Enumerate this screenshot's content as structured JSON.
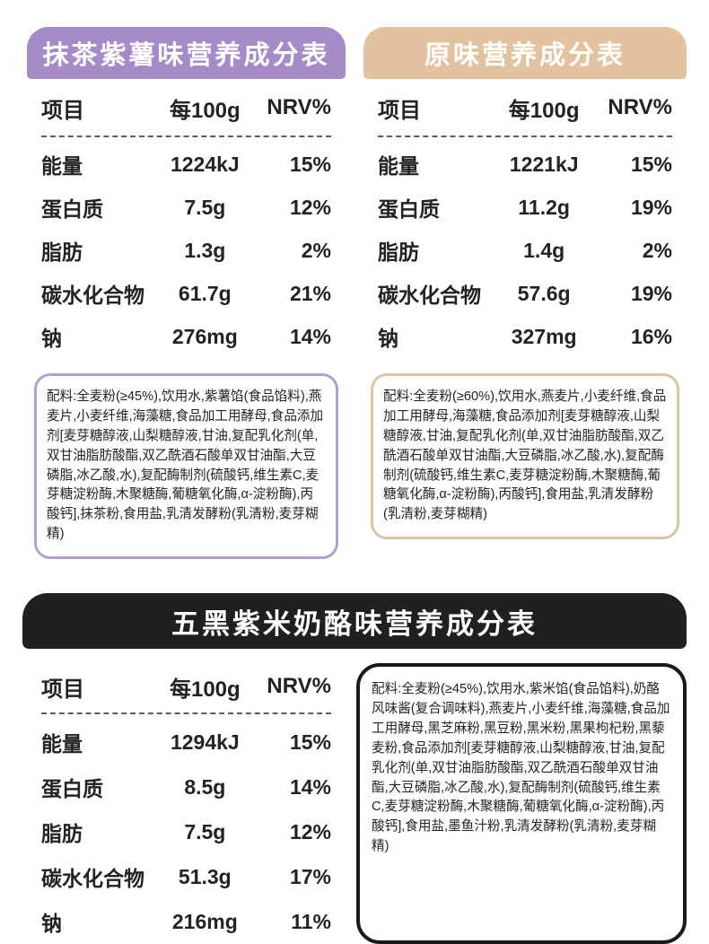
{
  "colors": {
    "matcha_header": "#a58bc7",
    "matcha_border": "#b2a0d4",
    "original_header": "#e3c39f",
    "original_border": "#dcc3a2",
    "wuhei_header": "#202022",
    "wuhei_border": "#1a1a1a",
    "text": "#232323",
    "background": "#ffffff"
  },
  "table_columns": [
    "项目",
    "每100g",
    "NRV%"
  ],
  "ingredients_prefix": "配料:",
  "panels": [
    {
      "id": "matcha-purple-potato",
      "title": "抹茶紫薯味营养成分表",
      "table": {
        "rows": [
          {
            "label": "能量",
            "value": "1224kJ",
            "nrv": "15%"
          },
          {
            "label": "蛋白质",
            "value": "7.5g",
            "nrv": "12%"
          },
          {
            "label": "脂肪",
            "value": "1.3g",
            "nrv": "2%"
          },
          {
            "label": "碳水化合物",
            "value": "61.7g",
            "nrv": "21%"
          },
          {
            "label": "钠",
            "value": "276mg",
            "nrv": "14%"
          }
        ]
      },
      "ingredients": "配料:全麦粉(≥45%),饮用水,紫薯馅(食品馅料),燕麦片,小麦纤维,海藻糖,食品加工用酵母,食品添加剂[麦芽糖醇液,山梨糖醇液,甘油,复配乳化剂(单,双甘油脂肪酸酯,双乙酰酒石酸单双甘油酯,大豆磷脂,冰乙酸,水),复配酶制剂(硫酸钙,维生素C,麦芽糖淀粉酶,木聚糖酶,葡糖氧化酶,α-淀粉酶),丙酸钙],抹茶粉,食用盐,乳清发酵粉(乳清粉,麦芽糊精)"
    },
    {
      "id": "original",
      "title": "原味营养成分表",
      "table": {
        "rows": [
          {
            "label": "能量",
            "value": "1221kJ",
            "nrv": "15%"
          },
          {
            "label": "蛋白质",
            "value": "11.2g",
            "nrv": "19%"
          },
          {
            "label": "脂肪",
            "value": "1.4g",
            "nrv": "2%"
          },
          {
            "label": "碳水化合物",
            "value": "57.6g",
            "nrv": "19%"
          },
          {
            "label": "钠",
            "value": "327mg",
            "nrv": "16%"
          }
        ]
      },
      "ingredients": "配料:全麦粉(≥60%),饮用水,燕麦片,小麦纤维,食品加工用酵母,海藻糖,食品添加剂[麦芽糖醇液,山梨糖醇液,甘油,复配乳化剂(单,双甘油脂肪酸酯,双乙酰酒石酸单双甘油酯,大豆磷脂,冰乙酸,水),复配酶制剂(硫酸钙,维生素C,麦芽糖淀粉酶,木聚糖酶,葡糖氧化酶,α-淀粉酶),丙酸钙],食用盐,乳清发酵粉(乳清粉,麦芽糊精)"
    },
    {
      "id": "five-black-purple-rice-cheese",
      "title": "五黑紫米奶酪味营养成分表",
      "table": {
        "rows": [
          {
            "label": "能量",
            "value": "1294kJ",
            "nrv": "15%"
          },
          {
            "label": "蛋白质",
            "value": "8.5g",
            "nrv": "14%"
          },
          {
            "label": "脂肪",
            "value": "7.5g",
            "nrv": "12%"
          },
          {
            "label": "碳水化合物",
            "value": "51.3g",
            "nrv": "17%"
          },
          {
            "label": "钠",
            "value": "216mg",
            "nrv": "11%"
          }
        ]
      },
      "ingredients": "配料:全麦粉(≥45%),饮用水,紫米馅(食品馅料),奶酪风味酱(复合调味料),燕麦片,小麦纤维,海藻糖,食品加工用酵母,黑芝麻粉,黑豆粉,黑米粉,黑果枸杞粉,黑藜麦粉,食品添加剂[麦芽糖醇液,山梨糖醇液,甘油,复配乳化剂(单,双甘油脂肪酸酯,双乙酰酒石酸单双甘油酯,大豆磷脂,冰乙酸,水),复配酶制剂(硫酸钙,维生素C,麦芽糖淀粉酶,木聚糖酶,葡糖氧化酶,α-淀粉酶),丙酸钙],食用盐,墨鱼汁粉,乳清发酵粉(乳清粉,麦芽糊精)"
    }
  ]
}
